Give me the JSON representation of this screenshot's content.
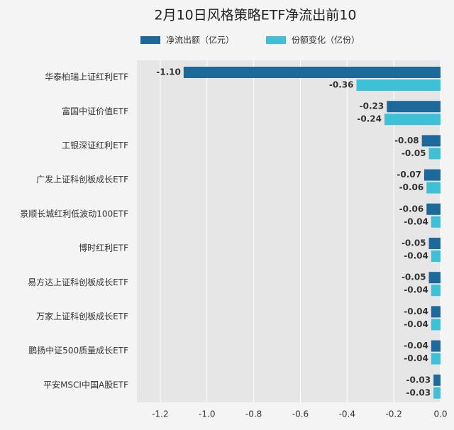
{
  "chart_data": {
    "type": "hbar",
    "title": "2月10日风格策略ETF净流出前10",
    "categories": [
      "华泰柏瑞上证红利ETF",
      "富国中证价值ETF",
      "工银深证红利ETF",
      "广发上证科创板成长ETF",
      "景顺长城红利低波动100ETF",
      "博时红利ETF",
      "易方达上证科创板成长ETF",
      "万家上证科创板成长ETF",
      "鹏扬中证500质量成长ETF",
      "平安MSCI中国A股ETF"
    ],
    "series": [
      {
        "name": "净流出额（亿元）",
        "color": "#1c6a9c",
        "values": [
          -1.1,
          -0.23,
          -0.08,
          -0.07,
          -0.06,
          -0.05,
          -0.05,
          -0.04,
          -0.04,
          -0.03
        ],
        "value_labels": [
          "-1.10",
          "-0.23",
          "-0.08",
          "-0.07",
          "-0.06",
          "-0.05",
          "-0.05",
          "-0.04",
          "-0.04",
          "-0.03"
        ]
      },
      {
        "name": "份额变化（亿份）",
        "color": "#3ec0d6",
        "values": [
          -0.36,
          -0.24,
          -0.05,
          -0.06,
          -0.04,
          -0.04,
          -0.04,
          -0.04,
          -0.04,
          -0.03
        ],
        "value_labels": [
          "-0.36",
          "-0.24",
          "-0.05",
          "-0.06",
          "-0.04",
          "-0.04",
          "-0.04",
          "-0.04",
          "-0.04",
          "-0.03"
        ]
      }
    ],
    "xlim": [
      -1.3,
      0
    ],
    "xticks": [
      -1.2,
      {
        "value": -1,
        "label": "-1.0"
      },
      -0.8,
      -0.6,
      -0.4,
      -0.2,
      {
        "value": 0,
        "label": "0.0"
      }
    ],
    "grid": true
  }
}
